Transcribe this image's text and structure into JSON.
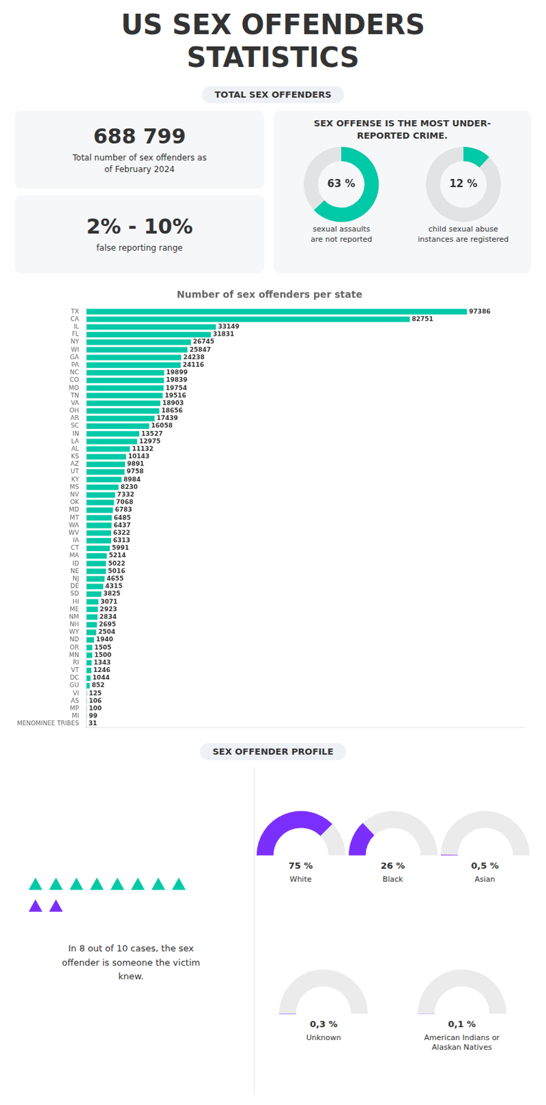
{
  "title": "US SEX OFFENDERS\nSTATISTICS",
  "chart_data": [
    {
      "type": "doughnut",
      "subtitle": "TOTAL SEX OFFENDERS",
      "title": "SEX OFFENSE IS THE MOST UNDER-\nREPORTED CRIME.",
      "annotations": [
        {
          "text": "688 799",
          "label": "Total number of sex offenders as\nof February 2024"
        },
        {
          "text": "2% - 10%",
          "label": "false reporting range"
        }
      ],
      "categories": [
        "sexual assaults\nare not reported",
        "child sexual abuse\ninstances are registered"
      ],
      "values": [
        63,
        12
      ],
      "value_labels": [
        "63 %",
        "12 %"
      ],
      "color": "#00c9a7"
    },
    {
      "type": "bar",
      "title": "Number of sex offenders per state",
      "orientation": "horizontal",
      "categories": [
        "TX",
        "CA",
        "IL",
        "FL",
        "NY",
        "WI",
        "GA",
        "PA",
        "NC",
        "CO",
        "MO",
        "TN",
        "VA",
        "OH",
        "AR",
        "SC",
        "IN",
        "LA",
        "AL",
        "KS",
        "AZ",
        "UT",
        "KY",
        "MS",
        "NV",
        "OK",
        "MD",
        "MT",
        "WA",
        "WV",
        "IA",
        "CT",
        "MA",
        "ID",
        "NE",
        "NJ",
        "DE",
        "SD",
        "HI",
        "ME",
        "NM",
        "NH",
        "WY",
        "ND",
        "OR",
        "MN",
        "RI",
        "VT",
        "DC",
        "GU",
        "VI",
        "AS",
        "MP",
        "MI",
        "MENOMINEE TRIBES"
      ],
      "values": [
        97386,
        82751,
        33149,
        31831,
        26745,
        25847,
        24238,
        24116,
        19899,
        19839,
        19754,
        19516,
        18903,
        18656,
        17439,
        16058,
        13527,
        12975,
        11132,
        10143,
        9891,
        9758,
        8984,
        8230,
        7332,
        7068,
        6783,
        6485,
        6437,
        6322,
        6313,
        5991,
        5214,
        5022,
        5016,
        4655,
        4315,
        3825,
        3071,
        2923,
        2834,
        2695,
        2504,
        1940,
        1505,
        1500,
        1343,
        1246,
        1044,
        852,
        125,
        106,
        100,
        99,
        31
      ],
      "color": "#00c9a7",
      "xlim": [
        0,
        111993.9
      ],
      "data_labels": true,
      "tick_labels": "y",
      "grid": false
    },
    {
      "type": "gauge",
      "subtitle": "SEX OFFENDER PROFILE",
      "annotations": [
        {
          "text": "In 8 out of 10 cases, the sex\noffender is someone the victim\nknew."
        }
      ],
      "pictogram": {
        "values": [
          8,
          2
        ],
        "colors": [
          "#00c9a7",
          "#7b2fff"
        ]
      },
      "categories": [
        "White",
        "Black",
        "Asian",
        "Unknown",
        "American Indians or\nAlaskan Natives"
      ],
      "values": [
        75,
        26,
        0.5,
        0.3,
        0.1
      ],
      "value_labels": [
        "75 %",
        "26 %",
        "0,5 %",
        "0,3 %",
        "0,1 %"
      ],
      "color": "#7b2fff"
    }
  ]
}
